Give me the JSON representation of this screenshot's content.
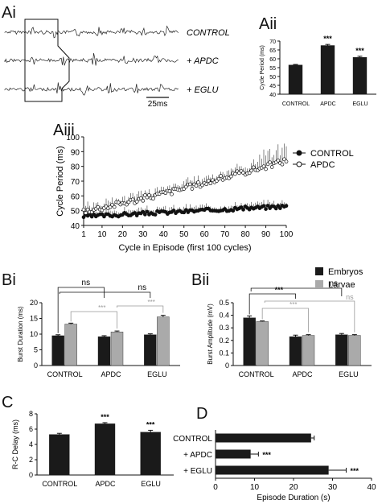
{
  "chart_data": [
    {
      "panel": "Ai",
      "type": "trace",
      "traces": [
        {
          "label": "CONTROL"
        },
        {
          "label": "+ APDC"
        },
        {
          "label": "+ EGLU"
        }
      ],
      "scalebar": "25ms"
    },
    {
      "panel": "Aii",
      "type": "bar",
      "ylabel": "Cycle Period (ms)",
      "ylim": [
        40,
        70
      ],
      "yticks": [
        40,
        45,
        50,
        55,
        60,
        65,
        70
      ],
      "categories": [
        "CONTROL",
        "APDC",
        "EGLU"
      ],
      "values": [
        56.5,
        67.5,
        60.8
      ],
      "errors": [
        0.3,
        0.6,
        0.6
      ],
      "significance": [
        "",
        "***",
        "***"
      ],
      "color": "#1a1a1a"
    },
    {
      "panel": "Aiii",
      "type": "scatter",
      "xlabel": "Cycle in Episode (first 100 cycles)",
      "ylabel": "Cycle Period (ms)",
      "xlim": [
        1,
        100
      ],
      "ylim": [
        40,
        100
      ],
      "xticks": [
        1,
        10,
        20,
        30,
        40,
        50,
        60,
        70,
        80,
        90,
        100
      ],
      "yticks": [
        40,
        50,
        60,
        70,
        80,
        90,
        100
      ],
      "legend": "top-right",
      "series": [
        {
          "name": "CONTROL",
          "marker": "filled",
          "start": 46,
          "end": 53,
          "err": 3
        },
        {
          "name": "APDC",
          "marker": "open",
          "start": 50,
          "end": 84,
          "err": 4
        }
      ]
    },
    {
      "panel": "Bi",
      "type": "bar",
      "ylabel": "Burst Duration (ms)",
      "ylim": [
        0,
        20
      ],
      "yticks": [
        0,
        5,
        10,
        15,
        20
      ],
      "categories": [
        "CONTROL",
        "APDC",
        "EGLU"
      ],
      "series": [
        {
          "name": "Embryos",
          "values": [
            9.5,
            9.2,
            9.8
          ],
          "errors": [
            0.3,
            0.3,
            0.3
          ]
        },
        {
          "name": "Larvae",
          "values": [
            13.2,
            10.7,
            15.5
          ],
          "errors": [
            0.3,
            0.3,
            0.5
          ]
        }
      ],
      "annotations": [
        "ns",
        "ns",
        "***",
        "***"
      ]
    },
    {
      "panel": "Bii",
      "type": "bar",
      "ylabel": "Burst Amplitude (mV)",
      "ylim": [
        0,
        0.5
      ],
      "yticks": [
        0,
        0.1,
        0.2,
        0.3,
        0.4,
        0.5
      ],
      "categories": [
        "CONTROL",
        "APDC",
        "EGLU"
      ],
      "series": [
        {
          "name": "Embryos",
          "values": [
            0.38,
            0.23,
            0.245
          ],
          "errors": [
            0.015,
            0.012,
            0.01
          ]
        },
        {
          "name": "Larvae",
          "values": [
            0.35,
            0.24,
            0.24
          ],
          "errors": [
            0.005,
            0.006,
            0.006
          ]
        }
      ],
      "annotations": [
        "***",
        "ns",
        "***",
        "ns"
      ],
      "legend": {
        "entries": [
          "Embryos",
          "Larvae"
        ],
        "placement": "top-right"
      }
    },
    {
      "panel": "C",
      "type": "bar",
      "ylabel": "R-C Delay (ms)",
      "ylim": [
        0,
        8
      ],
      "yticks": [
        0,
        2,
        4,
        6,
        8
      ],
      "categories": [
        "CONTROL",
        "APDC",
        "EGLU"
      ],
      "values": [
        5.3,
        6.7,
        5.6
      ],
      "errors": [
        0.15,
        0.15,
        0.25
      ],
      "significance": [
        "",
        "***",
        "***"
      ]
    },
    {
      "panel": "D",
      "type": "bar",
      "orientation": "horizontal",
      "xlabel": "Episode Duration (s)",
      "xlim": [
        0,
        40
      ],
      "xticks": [
        0,
        10,
        20,
        30,
        40
      ],
      "categories": [
        "CONTROL",
        "+ APDC",
        "+ EGLU"
      ],
      "values": [
        24.5,
        9.0,
        29.0
      ],
      "errors": [
        0.8,
        2.0,
        4.5
      ],
      "significance": [
        "",
        "***",
        "***"
      ]
    }
  ],
  "colors": {
    "embryo": "#1a1a1a",
    "larvae": "#aaaaaa",
    "sig_grey": "#999999"
  }
}
